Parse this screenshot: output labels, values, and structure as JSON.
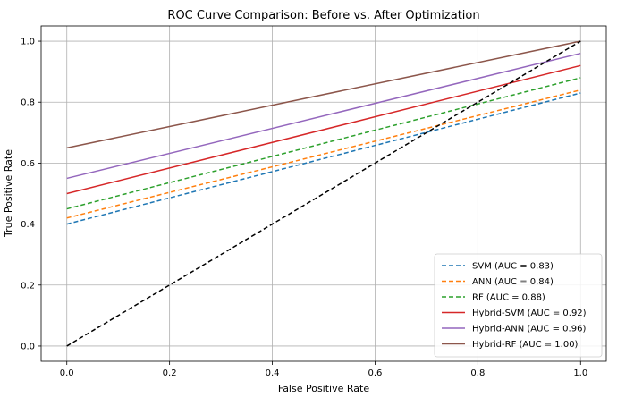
{
  "chart_data": {
    "type": "line",
    "title": "ROC Curve Comparison: Before vs. After Optimization",
    "xlabel": "False Positive Rate",
    "ylabel": "True Positive Rate",
    "xlim": [
      -0.05,
      1.05
    ],
    "ylim": [
      -0.05,
      1.05
    ],
    "x_ticks": [
      "0.0",
      "0.2",
      "0.4",
      "0.6",
      "0.8",
      "1.0"
    ],
    "y_ticks": [
      "0.0",
      "0.2",
      "0.4",
      "0.6",
      "0.8",
      "1.0"
    ],
    "grid": true,
    "legend_position": "lower-right",
    "series": [
      {
        "name": "SVM (AUC = 0.83)",
        "x": [
          0,
          1
        ],
        "y": [
          0.4,
          0.83
        ],
        "color": "#1f77b4",
        "dashed": true
      },
      {
        "name": "ANN (AUC = 0.84)",
        "x": [
          0,
          1
        ],
        "y": [
          0.42,
          0.84
        ],
        "color": "#ff7f0e",
        "dashed": true
      },
      {
        "name": "RF (AUC = 0.88)",
        "x": [
          0,
          1
        ],
        "y": [
          0.45,
          0.88
        ],
        "color": "#2ca02c",
        "dashed": true
      },
      {
        "name": "Hybrid-SVM (AUC = 0.92)",
        "x": [
          0,
          1
        ],
        "y": [
          0.5,
          0.92
        ],
        "color": "#d62728",
        "dashed": false
      },
      {
        "name": "Hybrid-ANN (AUC = 0.96)",
        "x": [
          0,
          1
        ],
        "y": [
          0.55,
          0.96
        ],
        "color": "#9467bd",
        "dashed": false
      },
      {
        "name": "Hybrid-RF (AUC = 1.00)",
        "x": [
          0,
          1
        ],
        "y": [
          0.65,
          1.0
        ],
        "color": "#8c564b",
        "dashed": false
      }
    ],
    "reference_line": {
      "x": [
        0,
        1
      ],
      "y": [
        0,
        1
      ],
      "color": "#000000",
      "dashed": true
    }
  }
}
